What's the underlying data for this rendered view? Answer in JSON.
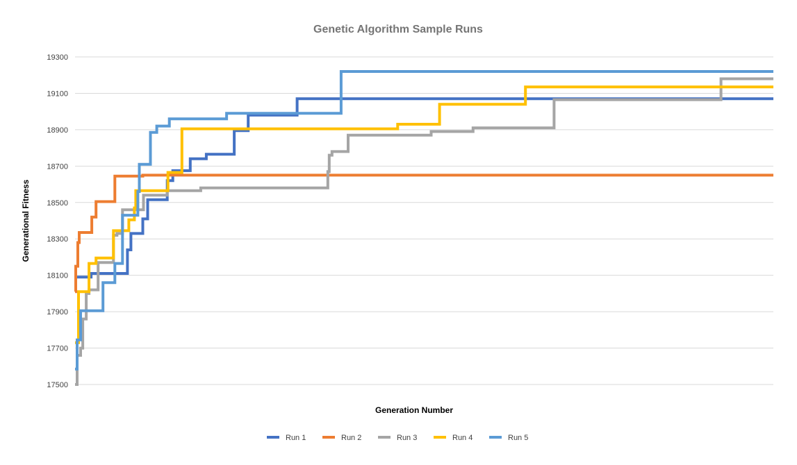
{
  "chart_data": {
    "type": "line",
    "title": "Genetic Algorithm Sample Runs",
    "xlabel": "Generation Number",
    "ylabel": "Generational Fitness",
    "ylim": [
      17500,
      19300
    ],
    "yticks": [
      17500,
      17700,
      17900,
      18100,
      18300,
      18500,
      18700,
      18900,
      19100,
      19300
    ],
    "xlim": [
      0,
      1000
    ],
    "grid": true,
    "legend_position": "bottom",
    "series": [
      {
        "name": "Run 1",
        "color": "#4472C4",
        "points": [
          [
            0,
            18090
          ],
          [
            23,
            18090
          ],
          [
            23,
            18110
          ],
          [
            75,
            18110
          ],
          [
            75,
            18240
          ],
          [
            80,
            18240
          ],
          [
            80,
            18330
          ],
          [
            97,
            18330
          ],
          [
            97,
            18410
          ],
          [
            104,
            18410
          ],
          [
            104,
            18515
          ],
          [
            132,
            18515
          ],
          [
            132,
            18620
          ],
          [
            140,
            18620
          ],
          [
            140,
            18675
          ],
          [
            165,
            18675
          ],
          [
            165,
            18740
          ],
          [
            188,
            18740
          ],
          [
            188,
            18765
          ],
          [
            228,
            18765
          ],
          [
            228,
            18895
          ],
          [
            248,
            18895
          ],
          [
            248,
            18980
          ],
          [
            318,
            18980
          ],
          [
            318,
            19070
          ],
          [
            1000,
            19070
          ]
        ]
      },
      {
        "name": "Run 2",
        "color": "#ED7D31",
        "points": [
          [
            0,
            18010
          ],
          [
            1,
            18010
          ],
          [
            1,
            18150
          ],
          [
            4,
            18150
          ],
          [
            4,
            18280
          ],
          [
            6,
            18280
          ],
          [
            6,
            18335
          ],
          [
            24,
            18335
          ],
          [
            24,
            18420
          ],
          [
            30,
            18420
          ],
          [
            30,
            18505
          ],
          [
            57,
            18505
          ],
          [
            57,
            18645
          ],
          [
            97,
            18645
          ],
          [
            97,
            18650
          ],
          [
            1000,
            18650
          ]
        ]
      },
      {
        "name": "Run 3",
        "color": "#A5A5A5",
        "points": [
          [
            0,
            17500
          ],
          [
            3,
            17500
          ],
          [
            3,
            17660
          ],
          [
            8,
            17660
          ],
          [
            8,
            17700
          ],
          [
            11,
            17700
          ],
          [
            11,
            17860
          ],
          [
            16,
            17860
          ],
          [
            16,
            18000
          ],
          [
            20,
            18000
          ],
          [
            20,
            18020
          ],
          [
            33,
            18020
          ],
          [
            33,
            18170
          ],
          [
            55,
            18170
          ],
          [
            55,
            18320
          ],
          [
            60,
            18320
          ],
          [
            60,
            18330
          ],
          [
            68,
            18330
          ],
          [
            68,
            18460
          ],
          [
            98,
            18460
          ],
          [
            98,
            18540
          ],
          [
            132,
            18540
          ],
          [
            132,
            18565
          ],
          [
            180,
            18565
          ],
          [
            180,
            18580
          ],
          [
            362,
            18580
          ],
          [
            362,
            18670
          ],
          [
            364,
            18670
          ],
          [
            364,
            18760
          ],
          [
            368,
            18760
          ],
          [
            368,
            18780
          ],
          [
            391,
            18780
          ],
          [
            391,
            18870
          ],
          [
            510,
            18870
          ],
          [
            510,
            18890
          ],
          [
            570,
            18890
          ],
          [
            570,
            18910
          ],
          [
            686,
            18910
          ],
          [
            686,
            19065
          ],
          [
            925,
            19065
          ],
          [
            925,
            19180
          ],
          [
            1000,
            19180
          ]
        ]
      },
      {
        "name": "Run 4",
        "color": "#FFC000",
        "points": [
          [
            0,
            17730
          ],
          [
            5,
            17730
          ],
          [
            5,
            18010
          ],
          [
            20,
            18010
          ],
          [
            20,
            18165
          ],
          [
            30,
            18165
          ],
          [
            30,
            18195
          ],
          [
            55,
            18195
          ],
          [
            55,
            18345
          ],
          [
            77,
            18345
          ],
          [
            77,
            18405
          ],
          [
            85,
            18405
          ],
          [
            85,
            18470
          ],
          [
            87,
            18470
          ],
          [
            87,
            18565
          ],
          [
            133,
            18565
          ],
          [
            133,
            18665
          ],
          [
            153,
            18665
          ],
          [
            153,
            18905
          ],
          [
            462,
            18905
          ],
          [
            462,
            18930
          ],
          [
            522,
            18930
          ],
          [
            522,
            19040
          ],
          [
            645,
            19040
          ],
          [
            645,
            19135
          ],
          [
            1000,
            19135
          ]
        ]
      },
      {
        "name": "Run 5",
        "color": "#5B9BD5",
        "points": [
          [
            0,
            17585
          ],
          [
            3,
            17585
          ],
          [
            3,
            17745
          ],
          [
            8,
            17745
          ],
          [
            8,
            17905
          ],
          [
            40,
            17905
          ],
          [
            40,
            18060
          ],
          [
            57,
            18060
          ],
          [
            57,
            18165
          ],
          [
            68,
            18165
          ],
          [
            68,
            18430
          ],
          [
            90,
            18430
          ],
          [
            90,
            18560
          ],
          [
            92,
            18560
          ],
          [
            92,
            18710
          ],
          [
            108,
            18710
          ],
          [
            108,
            18885
          ],
          [
            117,
            18885
          ],
          [
            117,
            18920
          ],
          [
            135,
            18920
          ],
          [
            135,
            18960
          ],
          [
            217,
            18960
          ],
          [
            217,
            18990
          ],
          [
            381,
            18990
          ],
          [
            381,
            19220
          ],
          [
            1000,
            19220
          ]
        ]
      }
    ]
  }
}
